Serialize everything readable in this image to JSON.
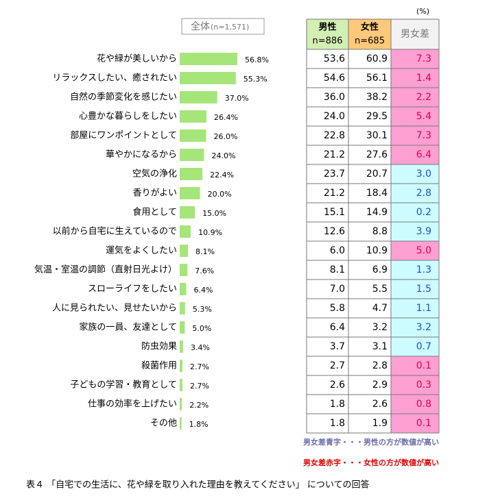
{
  "chart_data": {
    "type": "bar",
    "title": "全体",
    "subtitle": "(n=1,571)",
    "categories": [
      "花や緑が美しいから",
      "リラックスしたい、癒されたい",
      "自然の季節変化を感じたい",
      "心豊かな暮らしをしたい",
      "部屋にワンポイントとして",
      "華やかになるから",
      "空気の浄化",
      "香りがよい",
      "食用として",
      "以前から自宅に生えているので",
      "運気をよくしたい",
      "気温・室温の調節（直射日光よけ）",
      "スローライフをしたい",
      "人に見られたい、見せたいから",
      "家族の一員、友達として",
      "防虫効果",
      "殺菌作用",
      "子どもの学習・教育として",
      "仕事の効率を上げたい",
      "その他"
    ],
    "values": [
      56.8,
      55.3,
      37.0,
      26.4,
      26.0,
      24.0,
      22.4,
      20.0,
      15.0,
      10.9,
      8.1,
      7.6,
      6.4,
      5.3,
      5.0,
      3.4,
      2.7,
      2.7,
      2.2,
      1.8
    ],
    "value_labels": [
      "56.8%",
      "55.3%",
      "37.0%",
      "26.4%",
      "26.0%",
      "24.0%",
      "22.4%",
      "20.0%",
      "15.0%",
      "10.9%",
      "8.1%",
      "7.6%",
      "6.4%",
      "5.3%",
      "5.0%",
      "3.4%",
      "2.7%",
      "2.7%",
      "2.2%",
      "1.8%"
    ],
    "color": "#a6e57a"
  },
  "table": {
    "unit": "(%)",
    "headers": [
      {
        "name": "男性",
        "n": "n=886",
        "bg": "#d2efb4"
      },
      {
        "name": "女性",
        "n": "n=685",
        "bg": "#ffc87a"
      },
      {
        "name": "男女差",
        "bg": "#f2f2f2"
      }
    ],
    "rows": [
      {
        "male": "53.6",
        "female": "60.9",
        "diff": "7.3",
        "diff_color": "#e0004a",
        "diff_bg": "#ffa0d2"
      },
      {
        "male": "54.6",
        "female": "56.1",
        "diff": "1.4",
        "diff_color": "#e0004a",
        "diff_bg": "#ffa0d2"
      },
      {
        "male": "36.0",
        "female": "38.2",
        "diff": "2.2",
        "diff_color": "#e0004a",
        "diff_bg": "#ffa0d2"
      },
      {
        "male": "24.0",
        "female": "29.5",
        "diff": "5.4",
        "diff_color": "#e0004a",
        "diff_bg": "#ffa0d2"
      },
      {
        "male": "22.8",
        "female": "30.1",
        "diff": "7.3",
        "diff_color": "#e0004a",
        "diff_bg": "#ffa0d2"
      },
      {
        "male": "21.2",
        "female": "27.6",
        "diff": "6.4",
        "diff_color": "#e0004a",
        "diff_bg": "#ffa0d2"
      },
      {
        "male": "23.7",
        "female": "20.7",
        "diff": "3.0",
        "diff_color": "#1a4fc8",
        "diff_bg": "#cdfcff"
      },
      {
        "male": "21.2",
        "female": "18.4",
        "diff": "2.8",
        "diff_color": "#1a4fc8",
        "diff_bg": "#cdfcff"
      },
      {
        "male": "15.1",
        "female": "14.9",
        "diff": "0.2",
        "diff_color": "#1a4fc8",
        "diff_bg": "#cdfcff"
      },
      {
        "male": "12.6",
        "female": "8.8",
        "diff": "3.9",
        "diff_color": "#1a4fc8",
        "diff_bg": "#cdfcff"
      },
      {
        "male": "6.0",
        "female": "10.9",
        "diff": "5.0",
        "diff_color": "#e0004a",
        "diff_bg": "#ffa0d2"
      },
      {
        "male": "8.1",
        "female": "6.9",
        "diff": "1.3",
        "diff_color": "#1a4fc8",
        "diff_bg": "#cdfcff"
      },
      {
        "male": "7.0",
        "female": "5.5",
        "diff": "1.5",
        "diff_color": "#1a4fc8",
        "diff_bg": "#cdfcff"
      },
      {
        "male": "5.8",
        "female": "4.7",
        "diff": "1.1",
        "diff_color": "#1a4fc8",
        "diff_bg": "#cdfcff"
      },
      {
        "male": "6.4",
        "female": "3.2",
        "diff": "3.2",
        "diff_color": "#1a4fc8",
        "diff_bg": "#cdfcff"
      },
      {
        "male": "3.7",
        "female": "3.1",
        "diff": "0.7",
        "diff_color": "#1a4fc8",
        "diff_bg": "#cdfcff"
      },
      {
        "male": "2.7",
        "female": "2.8",
        "diff": "0.1",
        "diff_color": "#e0004a",
        "diff_bg": "#ffa0d2"
      },
      {
        "male": "2.6",
        "female": "2.9",
        "diff": "0.3",
        "diff_color": "#e0004a",
        "diff_bg": "#ffa0d2"
      },
      {
        "male": "1.8",
        "female": "2.6",
        "diff": "0.8",
        "diff_color": "#e0004a",
        "diff_bg": "#ffa0d2"
      },
      {
        "male": "1.8",
        "female": "1.9",
        "diff": "0.1",
        "diff_color": "#e0004a",
        "diff_bg": "#ffa0d2"
      }
    ],
    "notes": [
      {
        "text": "男女差青字・・・男性の方が数値が高い",
        "color": "#6b6bab"
      },
      {
        "text": "男女差赤字・・・女性の方が数値が高い",
        "color": "#e00000"
      }
    ]
  },
  "caption": "表４ 「自宅での生活に、花や緑を取り入れた理由を教えてください」 についての回答"
}
